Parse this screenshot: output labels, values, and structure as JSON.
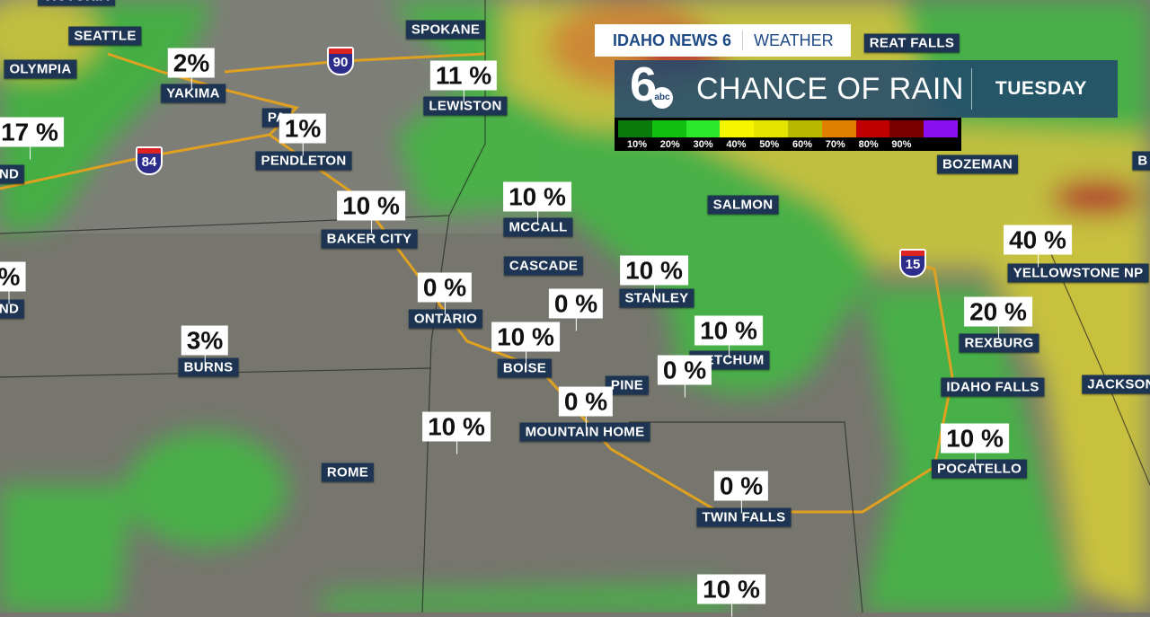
{
  "brand": {
    "station": "IDAHO NEWS 6",
    "section": "WEATHER"
  },
  "banner": {
    "logo_number": "6",
    "logo_network": "abc",
    "title": "CHANCE OF RAIN",
    "day": "TUESDAY"
  },
  "legend": {
    "colors": [
      "#0a7a0a",
      "#12c012",
      "#2ee82e",
      "#f5f500",
      "#e3e300",
      "#b8b800",
      "#e08000",
      "#c00000",
      "#7a0000",
      "#8a10f0"
    ],
    "labels": [
      "10%",
      "20%",
      "30%",
      "40%",
      "50%",
      "60%",
      "70%",
      "80%",
      "90%"
    ]
  },
  "cities": [
    "VICTORIA",
    "SEATTLE",
    "OLYMPIA",
    "YAKIMA",
    "PA",
    "PENDLETON",
    "SPOKANE",
    "LEWISTON",
    "ND",
    "BAKER CITY",
    "MCCALL",
    "CASCADE",
    "ONTARIO",
    "STANLEY",
    "SALMON",
    "BOISE",
    "KETCHUM",
    "PINE",
    "MOUNTAIN HOME",
    "BURNS",
    "ROME",
    "TWIN FALLS",
    "BOZEMAN",
    "YELLOWSTONE NP",
    "REXBURG",
    "IDAHO FALLS",
    "JACKSON",
    "POCATELLO",
    "ND",
    "B",
    "REAT FALLS"
  ],
  "percents": [
    "2%",
    "11 %",
    "1%",
    "17 %",
    "10 %",
    "10 %",
    "0 %",
    "0 %",
    "10 %",
    "10 %",
    "10 %",
    "0 %",
    "0 %",
    "3%",
    "10 %",
    "40 %",
    "20 %",
    "10 %",
    "0 %",
    "10 %",
    "%"
  ],
  "interstates": [
    "90",
    "84",
    "15"
  ]
}
